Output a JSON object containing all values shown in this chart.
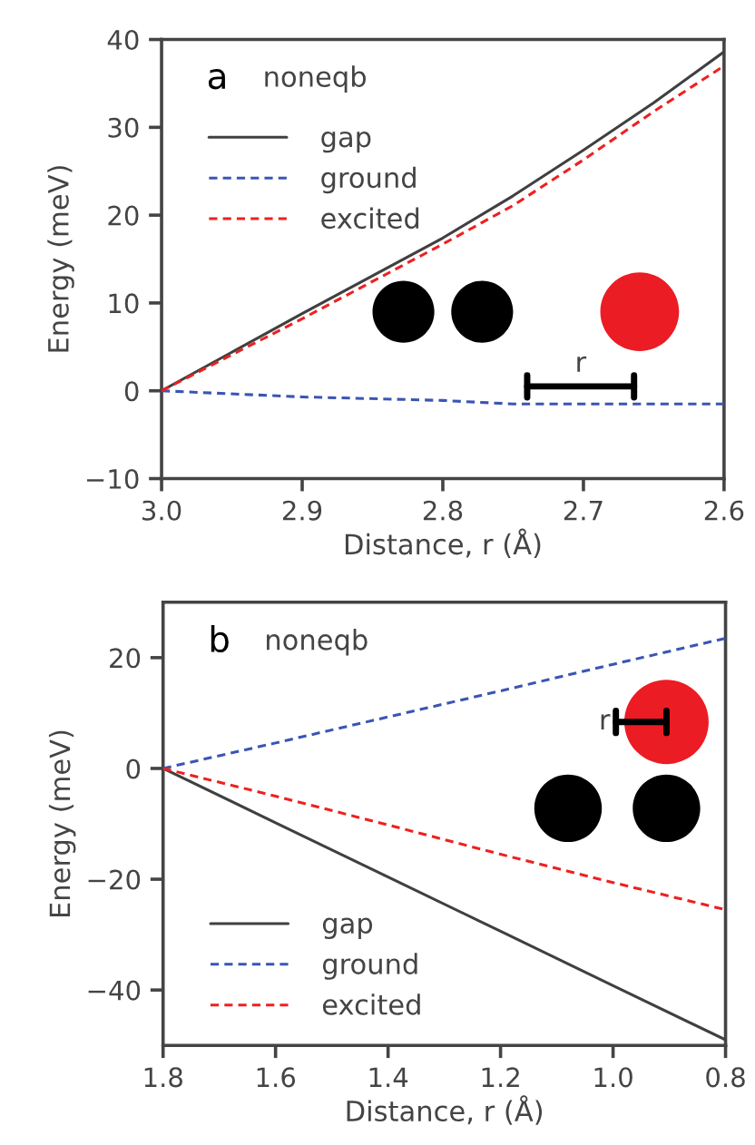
{
  "chart_data": [
    {
      "type": "line",
      "annotations": [
        "a",
        "noneqb",
        "r"
      ],
      "xlabel": "Distance, r (Å)",
      "ylabel": "Energy (meV)",
      "x": [
        3.0,
        2.9,
        2.8,
        2.75,
        2.7,
        2.65,
        2.6
      ],
      "series": [
        {
          "name": "gap",
          "color": "#404040",
          "line_style": "solid",
          "values": [
            0,
            8.8,
            17.4,
            22.2,
            27.4,
            32.8,
            38.6
          ]
        },
        {
          "name": "ground",
          "color": "#3a55b4",
          "line_style": "dashed",
          "values": [
            0,
            -0.7,
            -1.1,
            -1.5,
            -1.5,
            -1.5,
            -1.5
          ]
        },
        {
          "name": "excited",
          "color": "#ee2020",
          "line_style": "dashed",
          "values": [
            0,
            8.2,
            16.7,
            21.1,
            26.3,
            31.8,
            37.0
          ]
        }
      ],
      "xlim": [
        3.0,
        2.6
      ],
      "xticks": [
        {
          "value": 3.0,
          "label": "3.0"
        },
        2.9,
        2.8,
        2.7,
        2.6
      ],
      "ylim": [
        -10,
        40
      ],
      "yticks": [
        -10,
        0,
        10,
        20,
        30,
        40
      ],
      "legend": "top left",
      "grid": false
    },
    {
      "type": "line",
      "annotations": [
        "b",
        "noneqb",
        "r"
      ],
      "xlabel": "Distance, r (Å)",
      "ylabel": "Energy (meV)",
      "x": [
        1.8,
        1.6,
        1.4,
        1.2,
        1.0,
        0.8
      ],
      "series": [
        {
          "name": "gap",
          "color": "#404040",
          "line_style": "solid",
          "values": [
            0,
            -9.8,
            -19.6,
            -29.4,
            -39.2,
            -49
          ]
        },
        {
          "name": "ground",
          "color": "#3a55b4",
          "line_style": "dashed",
          "values": [
            0,
            4.6,
            9.3,
            14.0,
            18.8,
            23.5
          ]
        },
        {
          "name": "excited",
          "color": "#ee2020",
          "line_style": "dashed",
          "values": [
            0,
            -5.0,
            -10.2,
            -15.5,
            -20.6,
            -25.5
          ]
        }
      ],
      "xlim": [
        1.8,
        0.8
      ],
      "xticks": [
        1.8,
        1.6,
        1.4,
        1.2,
        {
          "value": 1.0,
          "label": "1.0"
        },
        0.8
      ],
      "ylim": [
        -50,
        30
      ],
      "yticks": [
        -40,
        -20,
        0,
        20
      ],
      "legend": "bottom left",
      "grid": false
    }
  ]
}
